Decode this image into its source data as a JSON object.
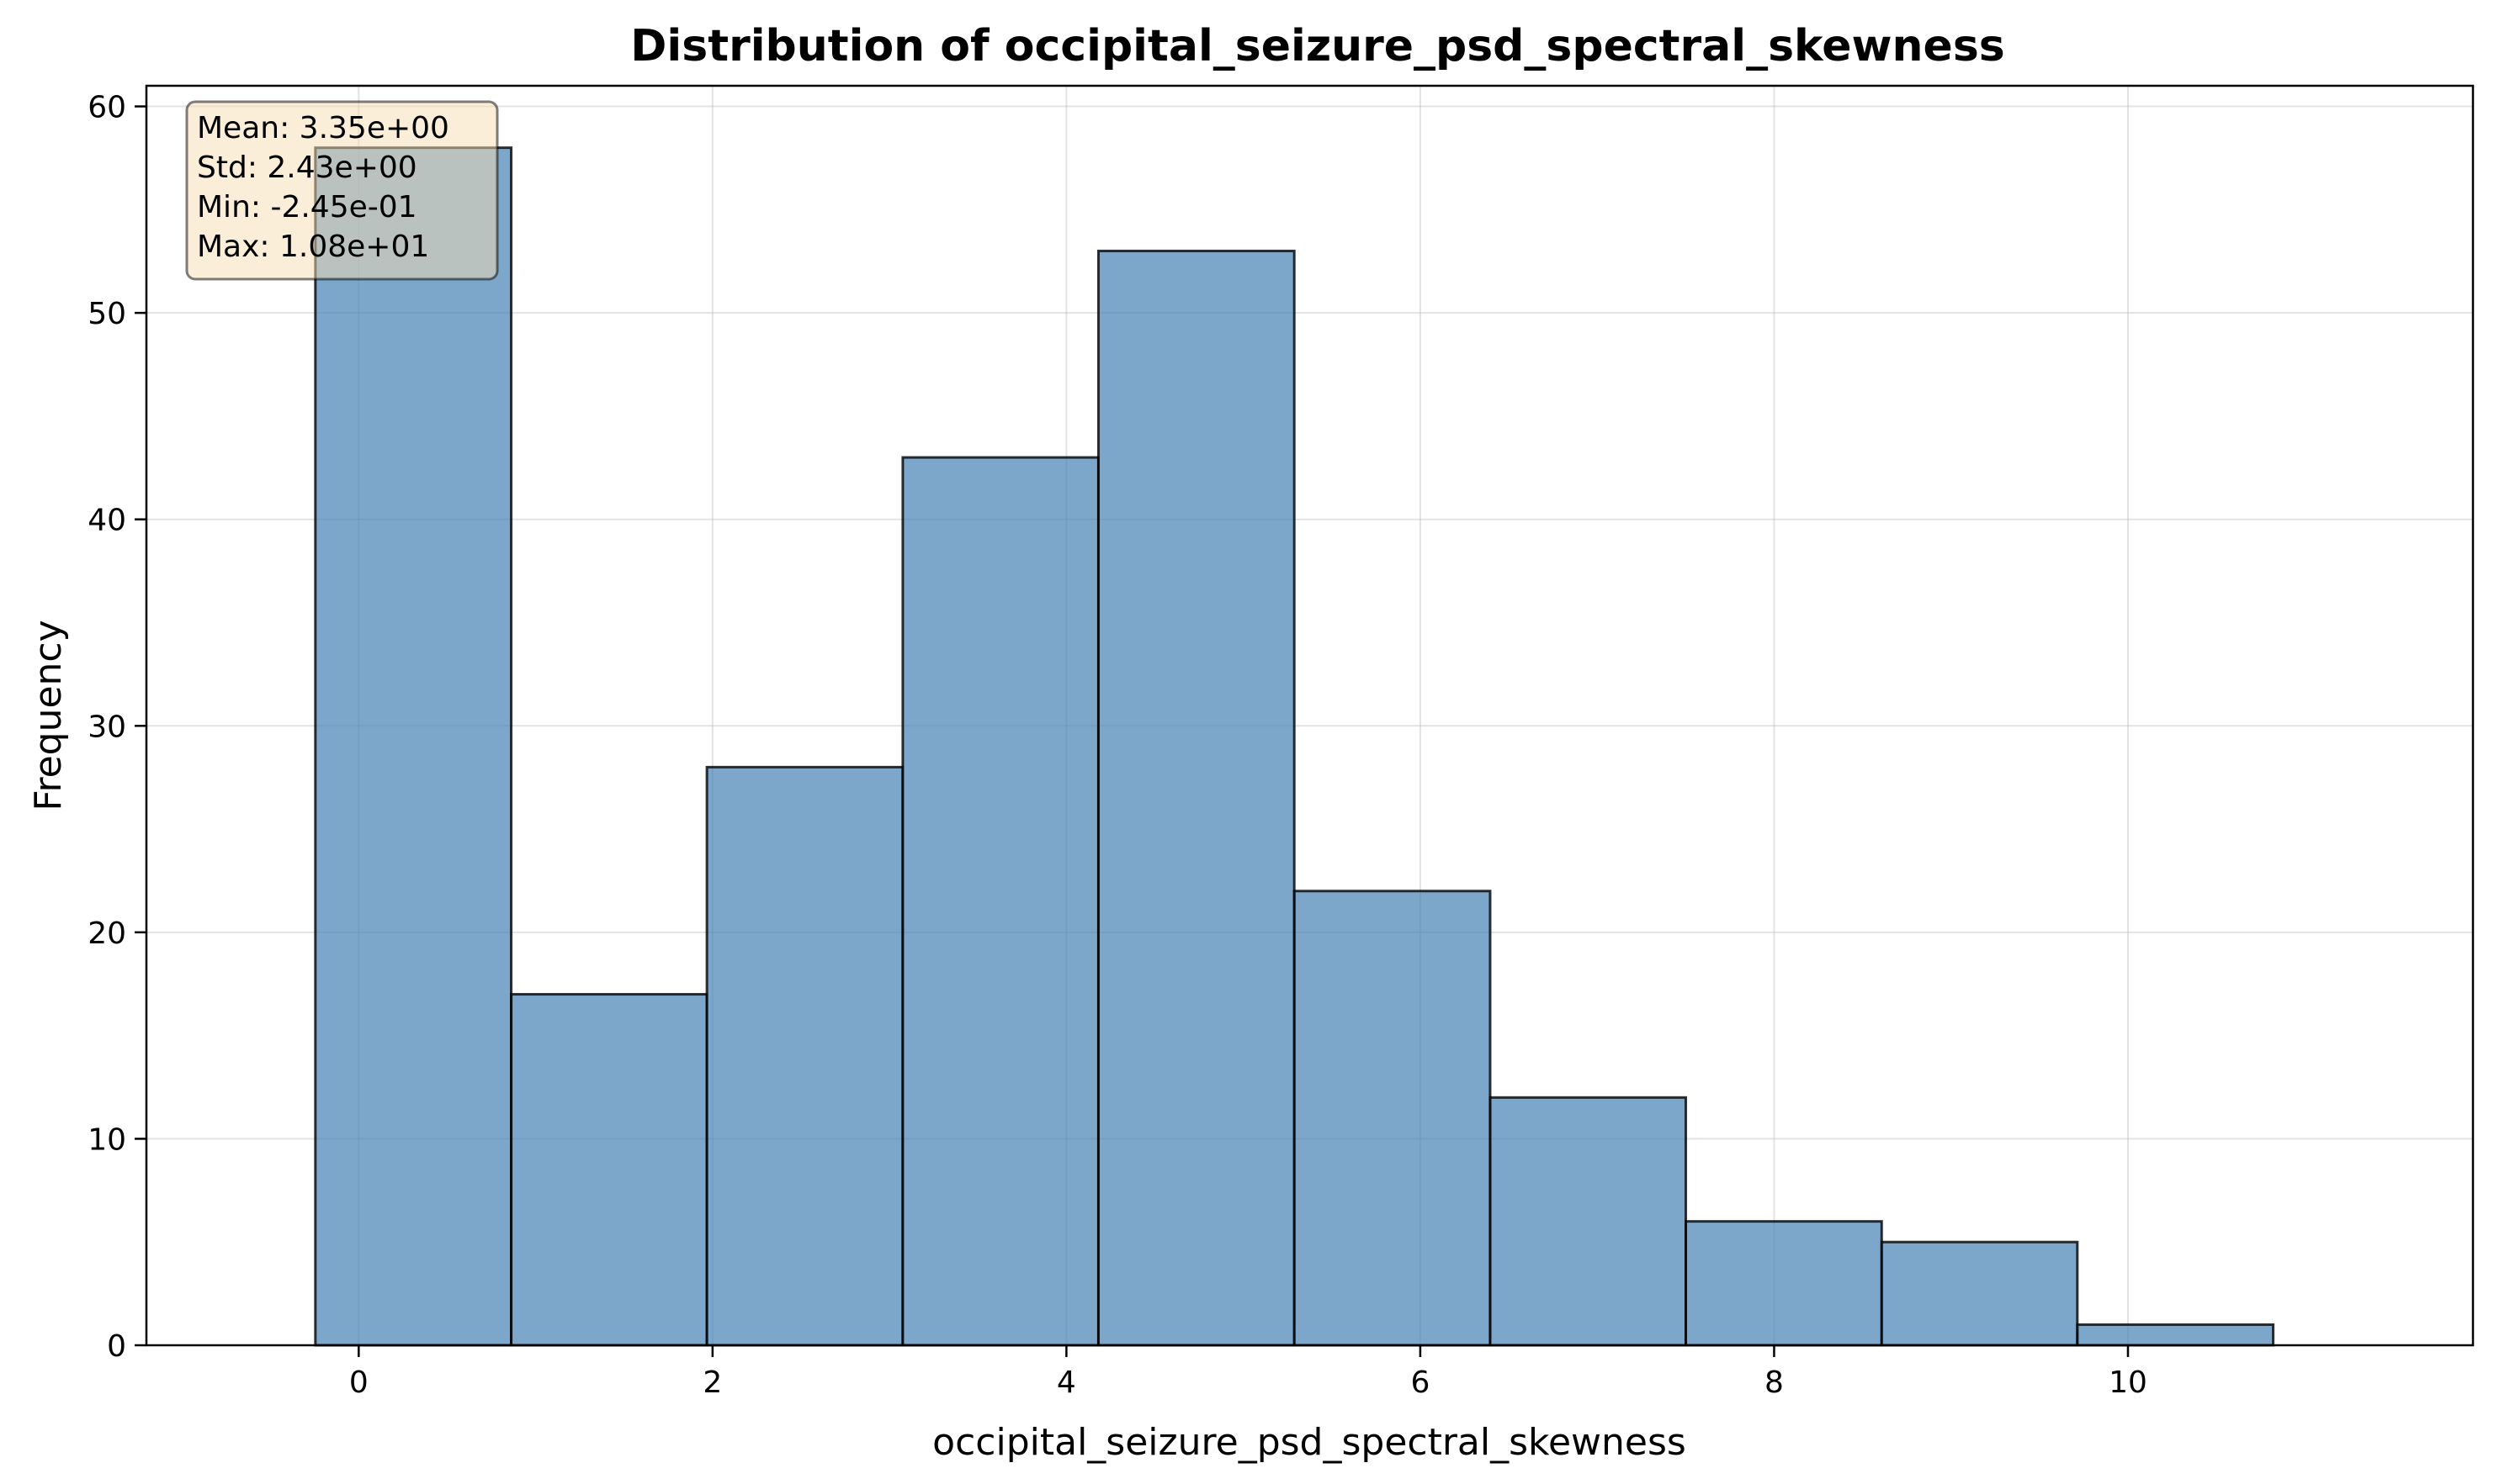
{
  "chart_data": {
    "type": "bar",
    "title": "Distribution of occipital_seizure_psd_spectral_skewness",
    "xlabel": "occipital_seizure_psd_spectral_skewness",
    "ylabel": "Frequency",
    "xlim": [
      -1.2,
      11.95
    ],
    "ylim": [
      0,
      61
    ],
    "xticks": [
      0,
      2,
      4,
      6,
      8,
      10
    ],
    "yticks": [
      0,
      10,
      20,
      30,
      40,
      50,
      60
    ],
    "grid": true,
    "bin_edges": [
      -0.245,
      0.862,
      1.968,
      3.075,
      4.181,
      5.288,
      6.395,
      7.501,
      8.608,
      9.714,
      10.821
    ],
    "values": [
      58,
      17,
      28,
      43,
      53,
      22,
      12,
      6,
      5,
      1
    ],
    "bar_color": "#4682b4",
    "stats_box": {
      "lines": [
        "Mean: 3.35e+00",
        "Std: 2.43e+00",
        "Min: -2.45e-01",
        "Max: 1.08e+01"
      ],
      "position": "top-left",
      "background": "#f5deb3"
    }
  }
}
